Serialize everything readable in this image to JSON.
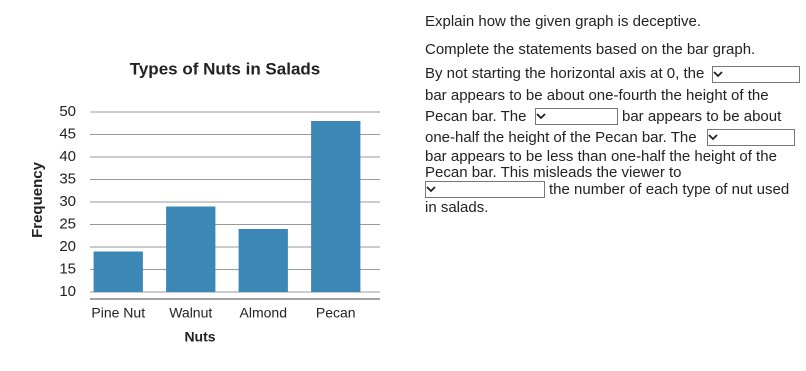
{
  "chart_data": {
    "type": "bar",
    "title": "Types of Nuts in Salads",
    "x_label": "Nuts",
    "y_label": "Frequency",
    "categories": [
      "Pine Nut",
      "Walnut",
      "Almond",
      "Pecan"
    ],
    "values": [
      19,
      29,
      24,
      48
    ],
    "color": "#3b87b6",
    "ylim": [
      10,
      50
    ],
    "yticks": [
      10,
      15,
      20,
      25,
      30,
      35,
      40,
      45,
      50
    ],
    "grid": true
  },
  "question": {
    "prompt": "Explain how the given graph is deceptive.",
    "instruction": "Complete the statements based on the bar graph.",
    "lines": [
      "By not starting the horizontal axis at 0, the",
      "bar appears to be about one-fourth the height of the",
      "Pecan bar. The",
      "bar appears to be about",
      "one-half the height of the Pecan bar. The",
      "bar appears to be less than one-half the height of the",
      "Pecan bar. This misleads the viewer to",
      "the number of each type of nut used",
      "in salads."
    ]
  }
}
